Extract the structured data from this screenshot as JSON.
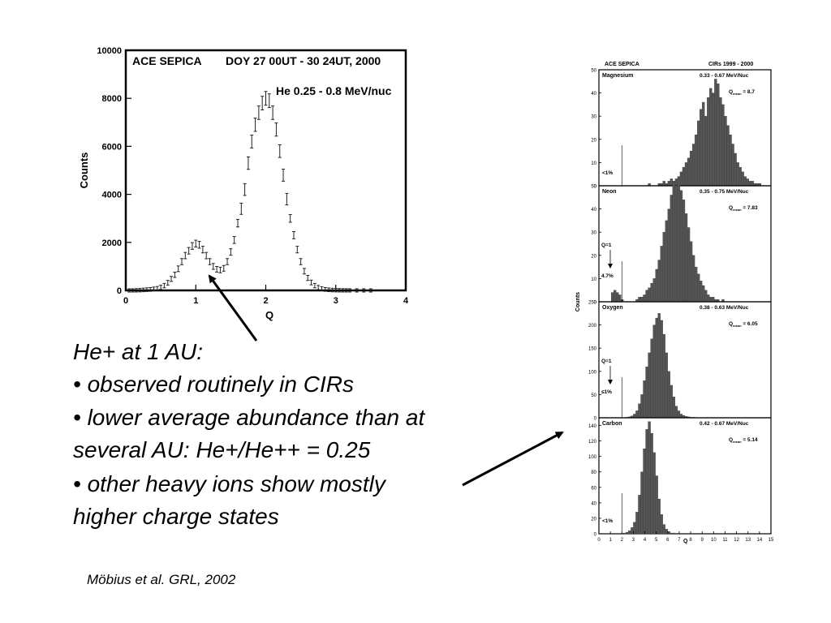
{
  "slide": {
    "text": {
      "heading": "He+ at 1 AU:",
      "lines": [
        "• observed routinely in CIRs",
        "• lower average abundance than at",
        "several AU: He+/He++ = 0.25",
        "• other heavy ions show mostly",
        "higher charge states"
      ]
    },
    "citation": "Möbius et al. GRL, 2002"
  },
  "chart_data": [
    {
      "type": "scatter",
      "title": "ACE SEPICA",
      "subtitle": "DOY 27 00UT - 30 24UT, 2000",
      "annotation": "He 0.25 - 0.8 MeV/nuc",
      "xlabel": "Q",
      "ylabel": "Counts",
      "xlim": [
        0,
        4
      ],
      "ylim": [
        0,
        10000
      ],
      "xticks": [
        "0",
        "1",
        "2",
        "3",
        "4"
      ],
      "yticks": [
        "0",
        "2000",
        "4000",
        "6000",
        "8000",
        "10000"
      ],
      "series": [
        {
          "x": [
            0.05,
            0.1,
            0.15,
            0.2,
            0.25,
            0.3,
            0.35,
            0.4,
            0.45,
            0.5,
            0.55,
            0.6,
            0.65,
            0.7,
            0.75,
            0.8,
            0.85,
            0.9,
            0.95,
            1.0,
            1.05,
            1.1,
            1.15,
            1.2,
            1.25,
            1.3,
            1.35,
            1.4,
            1.45,
            1.5,
            1.55,
            1.6,
            1.65,
            1.7,
            1.75,
            1.8,
            1.85,
            1.9,
            1.95,
            2.0,
            2.05,
            2.1,
            2.15,
            2.2,
            2.25,
            2.3,
            2.35,
            2.4,
            2.45,
            2.5,
            2.55,
            2.6,
            2.65,
            2.7,
            2.75,
            2.8,
            2.85,
            2.9,
            2.95,
            3.0,
            3.05,
            3.1,
            3.15,
            3.2,
            3.3,
            3.4,
            3.5
          ],
          "y": [
            0,
            0,
            5,
            10,
            20,
            30,
            40,
            60,
            80,
            130,
            200,
            320,
            480,
            650,
            900,
            1200,
            1450,
            1650,
            1850,
            1950,
            1900,
            1700,
            1450,
            1200,
            1000,
            880,
            850,
            920,
            1200,
            1600,
            2100,
            2800,
            3400,
            4200,
            5300,
            6200,
            6900,
            7400,
            7800,
            8000,
            7900,
            7400,
            6700,
            5800,
            4800,
            3800,
            3000,
            2300,
            1700,
            1200,
            800,
            520,
            330,
            200,
            120,
            70,
            40,
            25,
            15,
            10,
            6,
            4,
            3,
            2,
            1,
            1,
            0
          ]
        }
      ]
    },
    {
      "type": "bar",
      "title": "ACE SEPICA",
      "subtitle": "CIRs 1999 - 2000",
      "xlabel": "Q",
      "ylabel": "Counts",
      "xlim": [
        0,
        15
      ],
      "xticks": [
        "0",
        "1",
        "2",
        "3",
        "4",
        "5",
        "6",
        "7",
        "8",
        "9",
        "10",
        "11",
        "12",
        "13",
        "14",
        "15"
      ],
      "panels": [
        {
          "name": "Magnesium",
          "energy": "0.33 - 0.67 MeV/Nuc",
          "qmean": "8.7",
          "note": "<1%",
          "ylim": [
            0,
            50
          ],
          "yticks": [
            "0",
            "10",
            "20",
            "30",
            "40",
            "50"
          ],
          "values": [
            0,
            0,
            0,
            0,
            0,
            0,
            0,
            0,
            0,
            0,
            0,
            0,
            0,
            0,
            0,
            0,
            0,
            0,
            0,
            0,
            1,
            0,
            0,
            0,
            1,
            1,
            2,
            1,
            2,
            3,
            2,
            3,
            4,
            6,
            8,
            10,
            12,
            15,
            18,
            22,
            28,
            33,
            36,
            30,
            38,
            42,
            40,
            46,
            44,
            38,
            35,
            30,
            26,
            22,
            18,
            14,
            10,
            8,
            6,
            4,
            3,
            2,
            2,
            1,
            1,
            1,
            0,
            0,
            0,
            0
          ]
        },
        {
          "name": "Neon",
          "energy": "0.35 - 0.75 MeV/Nuc",
          "qmean": "7.83",
          "note": "Q=1",
          "note2": "4.7%",
          "ylim": [
            0,
            50
          ],
          "yticks": [
            "0",
            "10",
            "20",
            "30",
            "40",
            "50"
          ],
          "values": [
            0,
            0,
            0,
            0,
            0,
            4,
            5,
            4,
            3,
            1,
            0,
            0,
            0,
            0,
            0,
            1,
            2,
            2,
            3,
            5,
            6,
            8,
            10,
            14,
            18,
            24,
            30,
            35,
            40,
            46,
            52,
            50,
            53,
            48,
            44,
            38,
            32,
            26,
            20,
            15,
            12,
            9,
            7,
            5,
            3,
            2,
            2,
            1,
            1,
            0,
            1,
            0,
            0,
            0,
            0,
            0,
            0,
            0,
            0,
            0,
            0,
            0,
            0,
            0,
            0,
            0,
            0,
            0,
            0,
            0
          ]
        },
        {
          "name": "Oxygen",
          "energy": "0.38 - 0.63 MeV/Nuc",
          "qmean": "6.05",
          "note": "Q=1",
          "note2": "≤1%",
          "ylim": [
            0,
            250
          ],
          "yticks": [
            "0",
            "50",
            "100",
            "150",
            "200",
            "250"
          ],
          "values": [
            0,
            0,
            0,
            0,
            0,
            0,
            0,
            0,
            0,
            0,
            0,
            1,
            2,
            4,
            8,
            15,
            30,
            50,
            80,
            110,
            140,
            170,
            200,
            215,
            225,
            210,
            180,
            140,
            100,
            70,
            45,
            25,
            15,
            8,
            5,
            3,
            2,
            1,
            1,
            0,
            0,
            0,
            0,
            0,
            0,
            0,
            0,
            0,
            0,
            0,
            0,
            0,
            0,
            0,
            0,
            0,
            0,
            0,
            0,
            0,
            0,
            0,
            0,
            0,
            0,
            0,
            0,
            0,
            0,
            0
          ]
        },
        {
          "name": "Carbon",
          "energy": "0.42 - 0.67 MeV/Nuc",
          "qmean": "5.14",
          "note": "<1%",
          "ylim": [
            0,
            150
          ],
          "yticks": [
            "0",
            "20",
            "40",
            "60",
            "80",
            "100",
            "120",
            "140"
          ],
          "values": [
            0,
            0,
            0,
            0,
            0,
            0,
            0,
            0,
            0,
            0,
            1,
            2,
            4,
            8,
            15,
            28,
            50,
            80,
            110,
            135,
            145,
            130,
            105,
            75,
            45,
            25,
            12,
            6,
            3,
            1,
            1,
            0,
            0,
            0,
            0,
            0,
            0,
            0,
            0,
            0,
            0,
            0,
            0,
            0,
            0,
            0,
            0,
            0,
            0,
            0,
            0,
            0,
            0,
            0,
            0,
            0,
            0,
            0,
            0,
            0,
            0,
            0,
            0,
            0,
            0,
            0,
            0,
            0,
            0,
            0
          ]
        }
      ]
    }
  ]
}
